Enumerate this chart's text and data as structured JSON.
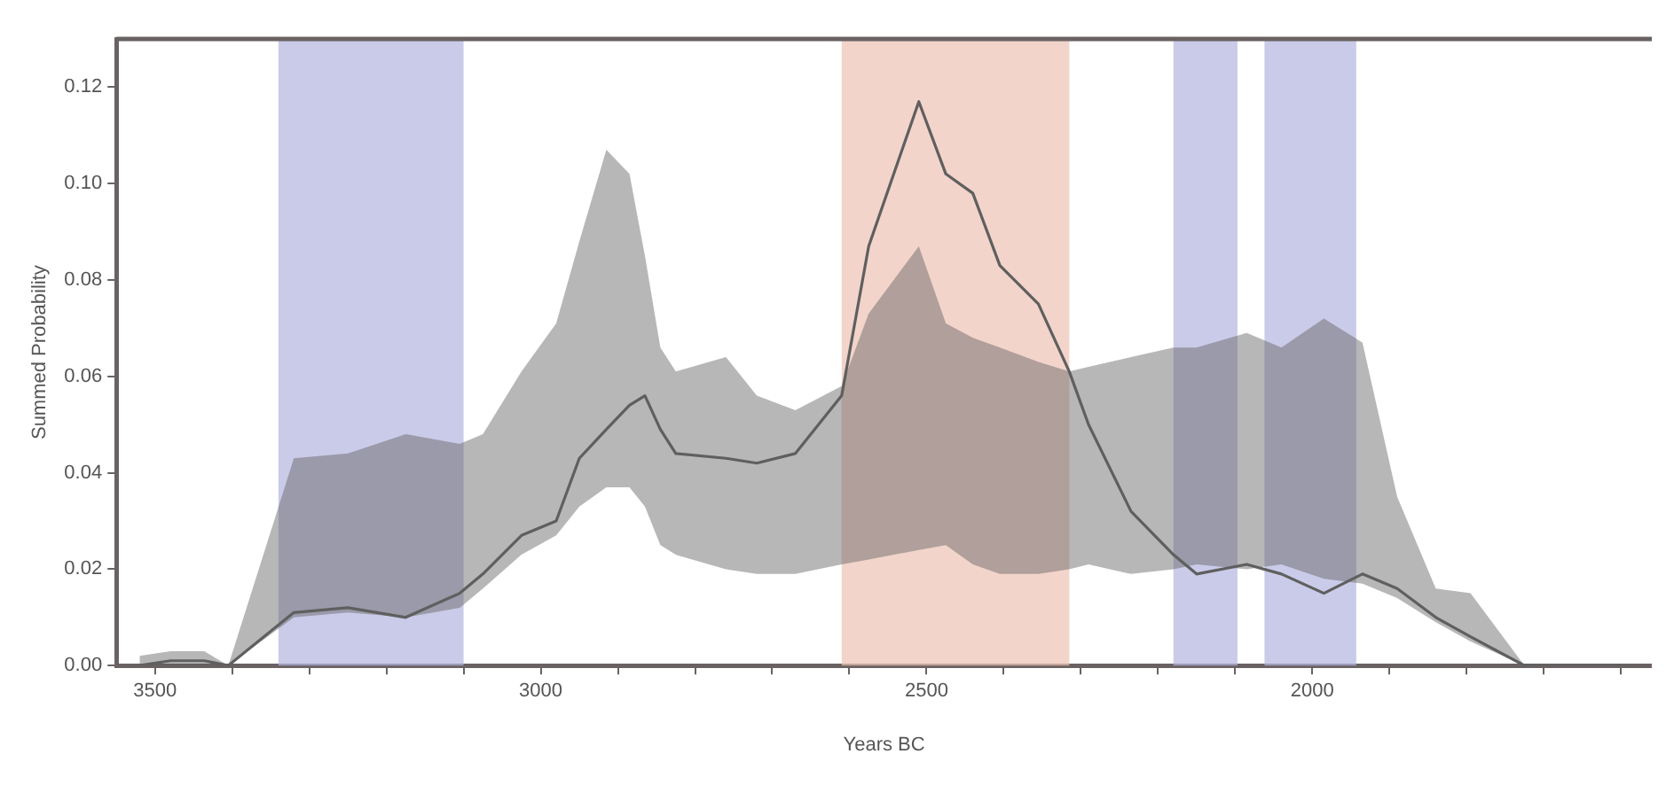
{
  "chart_data": {
    "type": "line",
    "xlabel": "Years BC",
    "ylabel": "Summed Probability",
    "x": [
      3520,
      3480,
      3436,
      3405,
      3320,
      3250,
      3175,
      3105,
      3075,
      3025,
      2980,
      2950,
      2915,
      2885,
      2865,
      2845,
      2825,
      2760,
      2720,
      2670,
      2610,
      2575,
      2510,
      2475,
      2440,
      2405,
      2355,
      2315,
      2290,
      2235,
      2180,
      2150,
      2085,
      2040,
      1985,
      1935,
      1890,
      1840,
      1795,
      1725,
      1600
    ],
    "series": [
      {
        "color": "#5f5f5f",
        "values": [
          0,
          0.001,
          0.001,
          0,
          0.011,
          0.012,
          0.01,
          0.015,
          0.019,
          0.027,
          0.03,
          0.043,
          0.049,
          0.054,
          0.056,
          0.049,
          0.044,
          0.043,
          0.042,
          0.044,
          0.056,
          0.087,
          0.117,
          0.102,
          0.098,
          0.083,
          0.075,
          0.061,
          0.05,
          0.032,
          0.023,
          0.019,
          0.021,
          0.019,
          0.015,
          0.019,
          0.016,
          0.01,
          0.006,
          0,
          0
        ],
        "lower": [
          0,
          0,
          0,
          0,
          0.01,
          0.011,
          0.01,
          0.012,
          0.016,
          0.023,
          0.027,
          0.033,
          0.037,
          0.037,
          0.033,
          0.025,
          0.023,
          0.02,
          0.019,
          0.019,
          0.021,
          0.022,
          0.024,
          0.025,
          0.021,
          0.019,
          0.019,
          0.02,
          0.021,
          0.019,
          0.02,
          0.021,
          0.02,
          0.021,
          0.018,
          0.017,
          0.014,
          0.009,
          0.005,
          0,
          0
        ],
        "upper": [
          0.002,
          0.003,
          0.003,
          0,
          0.043,
          0.044,
          0.048,
          0.046,
          0.048,
          0.061,
          0.071,
          0.088,
          0.107,
          0.102,
          0.085,
          0.066,
          0.061,
          0.064,
          0.056,
          0.053,
          0.058,
          0.073,
          0.087,
          0.071,
          0.068,
          0.066,
          0.063,
          0.061,
          0.062,
          0.064,
          0.066,
          0.066,
          0.069,
          0.066,
          0.072,
          0.067,
          0.035,
          0.016,
          0.015,
          0,
          0
        ]
      }
    ],
    "xlim": [
      3550,
      1560
    ],
    "xticks": [
      3500,
      {
        "value": 3400,
        "label": null
      },
      {
        "value": 3300,
        "label": null
      },
      {
        "value": 3200,
        "label": null
      },
      {
        "value": 3100,
        "label": null
      },
      3000,
      {
        "value": 2900,
        "label": null
      },
      {
        "value": 2800,
        "label": null
      },
      {
        "value": 2700,
        "label": null
      },
      {
        "value": 2600,
        "label": null
      },
      2500,
      {
        "value": 2400,
        "label": null
      },
      {
        "value": 2300,
        "label": null
      },
      {
        "value": 2200,
        "label": null
      },
      {
        "value": 2100,
        "label": null
      },
      2000,
      {
        "value": 1900,
        "label": null
      },
      {
        "value": 1800,
        "label": null
      },
      {
        "value": 1700,
        "label": null
      },
      {
        "value": 1600,
        "label": null
      }
    ],
    "ylim": [
      0,
      0.13
    ],
    "yticks": [
      {
        "value": 0,
        "label": "0.00"
      },
      {
        "value": 0.02,
        "label": "0.02"
      },
      {
        "value": 0.04,
        "label": "0.04"
      },
      {
        "value": 0.06,
        "label": "0.06"
      },
      {
        "value": 0.08,
        "label": "0.08"
      },
      {
        "value": 0.1,
        "label": "0.10"
      },
      {
        "value": 0.12,
        "label": "0.12"
      }
    ],
    "bands": [
      {
        "axis": "x",
        "from": 3340,
        "to": 3100,
        "color": "#b3b5de"
      },
      {
        "axis": "x",
        "from": 2610,
        "to": 2315,
        "color": "#ecc2b3"
      },
      {
        "axis": "x",
        "from": 2180,
        "to": 2097,
        "color": "#b3b5de"
      },
      {
        "axis": "x",
        "from": 2062,
        "to": 1943,
        "color": "#b3b5de"
      }
    ],
    "grid": false,
    "legend": false
  }
}
